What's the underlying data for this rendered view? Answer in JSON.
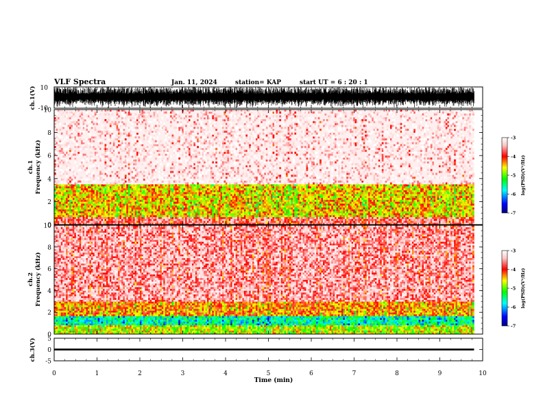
{
  "header": {
    "title": "VLF Spectra",
    "date": "Jan. 11, 2024",
    "station": "station= KAP",
    "start_time": "start UT =   6 : 20 : 1"
  },
  "chart_data": [
    {
      "type": "line",
      "name": "ch1-waveform",
      "ylabel": "ch.1(V)",
      "ylim": [
        -10,
        10
      ],
      "y_tick_labels": [
        "10",
        "-10"
      ],
      "xlim": [
        0,
        10
      ],
      "x_range_with_data": [
        0,
        9.8
      ],
      "amplitude_range": [
        -10,
        10
      ],
      "color": "#000000",
      "note": ""
    },
    {
      "type": "heatmap",
      "name": "ch1-spectrogram",
      "ylabel": "ch.1\nFrequency (kHz)",
      "ylabel_lines": [
        "ch.1",
        "Frequency (kHz)"
      ],
      "ylim": [
        0,
        10
      ],
      "y_tick_labels": [
        "0",
        "2",
        "4",
        "6",
        "8",
        "10"
      ],
      "xlim": [
        0,
        10
      ],
      "x_range_with_data": [
        0,
        9.8
      ],
      "colorbar": {
        "label": "log(PSD)(V²/Hz)",
        "range": [
          -7,
          -3
        ],
        "tick_labels": [
          "-3",
          "-4",
          "-5",
          "-6",
          "-7"
        ]
      },
      "bands_khz": [
        {
          "from": 0.0,
          "to": 0.6,
          "level": -3.8
        },
        {
          "from": 0.6,
          "to": 3.5,
          "level": -4.6
        },
        {
          "from": 3.5,
          "to": 10.0,
          "level": -3.3
        }
      ]
    },
    {
      "type": "heatmap",
      "name": "ch2-spectrogram",
      "ylabel": "ch.2\nFrequency (kHz)",
      "ylabel_lines": [
        "ch.2",
        "Frequency (kHz)"
      ],
      "ylim": [
        0,
        10
      ],
      "y_tick_labels": [
        "0",
        "2",
        "4",
        "6",
        "8",
        "10"
      ],
      "xlim": [
        0,
        10
      ],
      "x_range_with_data": [
        0,
        9.8
      ],
      "colorbar": {
        "label": "log(PSD)(V²/Hz)",
        "range": [
          -7,
          -3
        ],
        "tick_labels": [
          "-3",
          "-4",
          "-5",
          "-6",
          "-7"
        ]
      },
      "bands_khz": [
        {
          "from": 0.0,
          "to": 0.8,
          "level": -4.8
        },
        {
          "from": 0.8,
          "to": 1.7,
          "level": -5.6
        },
        {
          "from": 1.7,
          "to": 3.0,
          "level": -4.4
        },
        {
          "from": 3.0,
          "to": 10.0,
          "level": -3.6
        }
      ]
    },
    {
      "type": "line",
      "name": "ch3-waveform",
      "ylabel": "ch.3(V)",
      "ylim": [
        -5,
        5
      ],
      "y_tick_labels": [
        "5",
        "0",
        "-5"
      ],
      "xlim": [
        0,
        10
      ],
      "x_range_with_data": [
        0,
        9.8
      ],
      "amplitude_range": [
        -0.4,
        0.4
      ],
      "color": "#000000"
    }
  ],
  "x_axis": {
    "label": "Time (min)",
    "tick_labels": [
      "0",
      "1",
      "2",
      "3",
      "4",
      "5",
      "6",
      "7",
      "8",
      "9",
      "10"
    ],
    "range": [
      0,
      10
    ]
  },
  "colormap": [
    "#000080",
    "#0000ff",
    "#00ffff",
    "#00ff00",
    "#ffff00",
    "#ff0000",
    "#ffc8c8",
    "#ffffff"
  ]
}
